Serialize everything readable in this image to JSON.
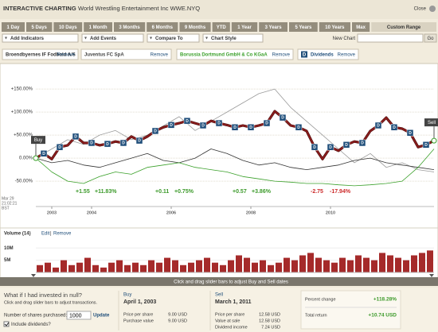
{
  "header": {
    "title": "INTERACTIVE CHARTING",
    "subtitle": "World Wrestling Entertainment Inc WWE.NYQ",
    "close": "Close"
  },
  "tabs": [
    "1 Day",
    "5 Days",
    "10 Days",
    "1 Month",
    "3 Months",
    "6 Months",
    "9 Months",
    "YTD",
    "1 Year",
    "3 Years",
    "5 Years",
    "10 Years",
    "Max",
    "Custom Range"
  ],
  "selected_tab": 13,
  "toolbar": {
    "dropdowns": [
      "Add Indicators",
      "Add Events",
      "Compare To",
      "Chart Style"
    ],
    "new_chart": "New Chart",
    "go": "Go"
  },
  "legend": [
    {
      "name": "Broendbyernes IF Fodbold A/S",
      "action": "Remove",
      "color": "#333333",
      "x": [
        2002.6,
        2003,
        2003.4,
        2003.8,
        2004.2,
        2004.6,
        2005,
        2005.4,
        2005.8,
        2006.2,
        2006.6,
        2007,
        2007.4,
        2007.8,
        2008.2,
        2008.6,
        2009,
        2009.4,
        2009.8,
        2010.2,
        2010.6,
        2011,
        2011.4,
        2011.8,
        2012.2,
        2012.6
      ],
      "values": [
        0,
        -10,
        -5,
        -15,
        -20,
        -10,
        0,
        10,
        -5,
        -10,
        0,
        20,
        10,
        -5,
        -15,
        -10,
        -20,
        -25,
        -20,
        -15,
        -5,
        0,
        -10,
        -15,
        -20,
        -25
      ]
    },
    {
      "name": "Juventus FC SpA",
      "action": "Remove",
      "color": "#9a9a9a",
      "x": [
        2002.6,
        2003,
        2003.4,
        2003.8,
        2004.2,
        2004.6,
        2005,
        2005.4,
        2005.8,
        2006.2,
        2006.6,
        2007,
        2007.4,
        2007.8,
        2008.2,
        2008.6,
        2009,
        2009.4,
        2009.8,
        2010.2,
        2010.6,
        2011,
        2011.4,
        2011.8,
        2012.2,
        2012.6
      ],
      "values": [
        0,
        20,
        40,
        30,
        50,
        60,
        40,
        50,
        70,
        90,
        60,
        80,
        100,
        120,
        140,
        150,
        110,
        80,
        50,
        20,
        -10,
        10,
        -20,
        -10,
        -25,
        -30
      ]
    },
    {
      "name": "Borussia Dortmund GmbH & Co KGaA",
      "action": "Remove",
      "color": "#3aa02a",
      "x": [
        2002.6,
        2003,
        2003.4,
        2003.8,
        2004.2,
        2004.6,
        2005,
        2005.4,
        2005.8,
        2006.2,
        2006.6,
        2007,
        2007.4,
        2007.8,
        2008.2,
        2008.6,
        2009,
        2009.4,
        2009.8,
        2010.2,
        2010.6,
        2011,
        2011.4,
        2011.8,
        2012.2,
        2012.6
      ],
      "values": [
        0,
        -30,
        -50,
        -55,
        -40,
        -30,
        -35,
        -20,
        -15,
        -10,
        -20,
        -25,
        -30,
        -40,
        -45,
        -50,
        -52,
        -55,
        -55,
        -58,
        -60,
        -58,
        -55,
        -50,
        -20,
        20
      ]
    },
    {
      "name": "Dividends",
      "action": "Remove",
      "icon": "D",
      "color": "#1f4e7a"
    }
  ],
  "chart": {
    "type": "line",
    "ylim": [
      -105,
      202
    ],
    "xlim": [
      2002.6,
      2012.6
    ],
    "yticks": [
      {
        "value": 150,
        "label": "+150.00%"
      },
      {
        "value": 100,
        "label": "+100.00%"
      },
      {
        "value": 50,
        "label": "+50.00%"
      },
      {
        "value": 0,
        "label": "0.00%"
      },
      {
        "value": -50,
        "label": "-50.00%"
      }
    ],
    "xticks": [
      2003,
      2004,
      2006,
      2008,
      2010
    ],
    "timestamp": [
      "Mar 29",
      "21:02:21",
      "BST"
    ],
    "main": {
      "color": "#8b1c1c",
      "x": [
        2002.6,
        2002.8,
        2003,
        2003.2,
        2003.4,
        2003.6,
        2003.8,
        2004,
        2004.2,
        2004.4,
        2004.6,
        2004.8,
        2005,
        2005.2,
        2005.4,
        2005.6,
        2005.8,
        2006,
        2006.2,
        2006.4,
        2006.6,
        2006.8,
        2007,
        2007.2,
        2007.4,
        2007.6,
        2007.8,
        2008,
        2008.2,
        2008.4,
        2008.6,
        2008.8,
        2009,
        2009.2,
        2009.4,
        2009.6,
        2009.8,
        2010,
        2010.2,
        2010.4,
        2010.6,
        2010.8,
        2011,
        2011.2,
        2011.4,
        2011.6,
        2011.8,
        2012,
        2012.2,
        2012.4,
        2012.6
      ],
      "values": [
        0,
        10,
        -2,
        24,
        28,
        47,
        33,
        33,
        28,
        31,
        36,
        33,
        47,
        38,
        47,
        59,
        67,
        72,
        76,
        81,
        76,
        71,
        81,
        76,
        72,
        67,
        71,
        67,
        71,
        76,
        102,
        88,
        71,
        67,
        59,
        24,
        -2,
        24,
        16,
        29,
        36,
        33,
        59,
        71,
        88,
        67,
        64,
        55,
        24,
        29,
        38
      ]
    },
    "dividends": {
      "label": "D",
      "color": "#1f4e7a",
      "x": [
        2002.8,
        2003.2,
        2003.6,
        2004,
        2004.4,
        2004.8,
        2005.2,
        2005.6,
        2006,
        2006.4,
        2006.8,
        2007.2,
        2007.6,
        2008,
        2008.4,
        2008.8,
        2009.2,
        2009.6,
        2010,
        2010.4,
        2010.8,
        2011.2,
        2011.6,
        2012,
        2012.4
      ]
    },
    "buy": "Buy",
    "sell": "Sell",
    "annotations": [
      {
        "change": "+1.55",
        "percent": "+11.83%",
        "color": "#3c9a2a"
      },
      {
        "change": "+0.11",
        "percent": "+0.75%",
        "color": "#3c9a2a"
      },
      {
        "change": "+0.57",
        "percent": "+3.86%",
        "color": "#3c9a2a"
      },
      {
        "change": "-2.75",
        "percent": "-17.94%",
        "color": "#cc2a2a"
      }
    ]
  },
  "volume": {
    "title": "Volume (14)",
    "edit": "Edit",
    "separator": "|",
    "remove": "Remove",
    "color": "#a52a2a",
    "ylim": [
      0,
      14
    ],
    "yticks": [
      {
        "value": 5,
        "label": "5M"
      },
      {
        "value": 10,
        "label": "10M"
      }
    ],
    "values": [
      3,
      4,
      2,
      5,
      3,
      4,
      6,
      3,
      2,
      4,
      5,
      3,
      4,
      3,
      5,
      4,
      6,
      5,
      3,
      4,
      5,
      6,
      4,
      3,
      5,
      7,
      6,
      4,
      5,
      3,
      4,
      6,
      5,
      7,
      8,
      6,
      5,
      4,
      6,
      5,
      7,
      6,
      5,
      8,
      7,
      6,
      5,
      7,
      8,
      9
    ]
  },
  "slider": "Click and drag slider bars to adjust Buy and Sell dates",
  "investment": {
    "title": "What if I had invested in null?",
    "hint": "Click and drag slider bars to adjust transactions.",
    "shares_label": "Number of shares purchased:",
    "shares": 1000,
    "update": "Update",
    "dividends_label": "Include dividends?",
    "buy": {
      "label": "Buy",
      "date": "April 1, 2003",
      "rows": [
        [
          "Price per share",
          "9.00 USD"
        ],
        [
          "Purchase value",
          "9.00 USD"
        ]
      ]
    },
    "sell": {
      "label": "Sell",
      "date": "March 1, 2011",
      "rows": [
        [
          "Price per share",
          "12.58 USD"
        ],
        [
          "Value at sale",
          "12.58 USD"
        ],
        [
          "Dividend income",
          "7.24 USD"
        ]
      ]
    },
    "summary": [
      [
        "Percent change",
        "+118.28%"
      ],
      [
        "Total return",
        "+10.74 USD"
      ]
    ]
  }
}
